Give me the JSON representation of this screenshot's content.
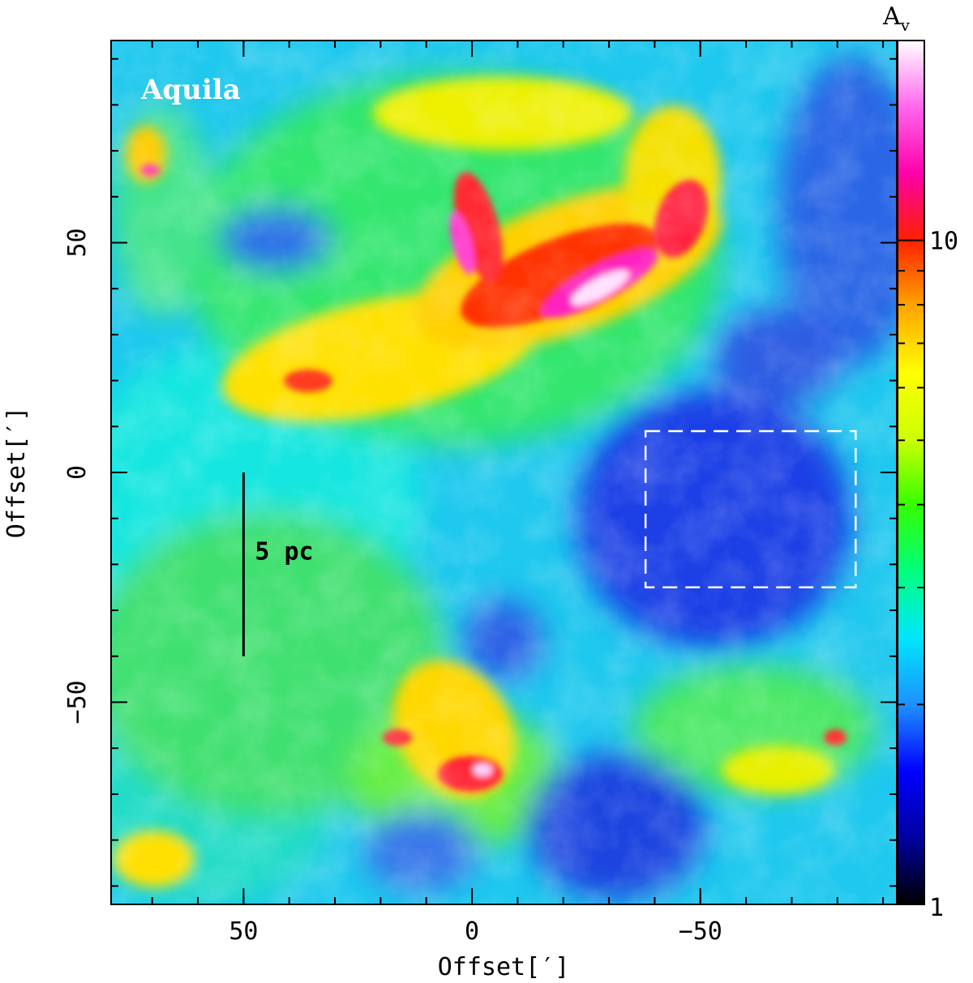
{
  "chart_data": {
    "type": "heatmap",
    "title": "",
    "panel_label": "Aquila",
    "xlabel": "Offset[′]",
    "ylabel": "Offset[′]",
    "xlim": [
      79,
      -93
    ],
    "ylim": [
      -94,
      94
    ],
    "x_ticks": [
      50,
      0,
      -50
    ],
    "x_tick_labels": [
      "50",
      "0",
      "−50"
    ],
    "y_ticks": [
      50,
      0,
      -50
    ],
    "y_tick_labels": [
      "50",
      "0",
      "−50"
    ],
    "colorbar": {
      "title": "A",
      "title_sub": "v",
      "scale": "log",
      "range": [
        1,
        20
      ],
      "tick_values": [
        10,
        1
      ],
      "tick_labels": [
        "10",
        "1"
      ],
      "colormap": [
        "#000000",
        "#0000a0",
        "#0000ff",
        "#1e90ff",
        "#00e5ff",
        "#00ff7f",
        "#33ff00",
        "#ccff00",
        "#ffff00",
        "#ffa500",
        "#ff2000",
        "#ff00aa",
        "#ff66ee",
        "#ffffff"
      ]
    },
    "scale_bar": {
      "label": "5 pc",
      "x": 50,
      "y_start": 0,
      "y_end": -40
    },
    "box": {
      "x_range": [
        -38,
        -84
      ],
      "y_range": [
        9,
        -25
      ],
      "color": "#ffffff",
      "style": "dashed"
    }
  }
}
